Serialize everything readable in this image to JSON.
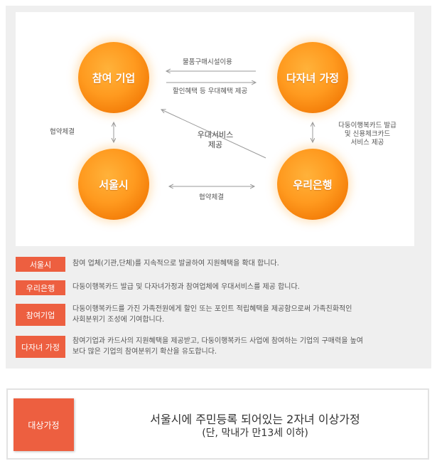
{
  "diagram": {
    "nodes": {
      "participating_company": "참여 기업",
      "multi_child_family": "다자녀 가정",
      "seoul": "서울시",
      "woori_bank": "우리은행"
    },
    "edge_labels": {
      "purchase": "물품구매시설이용",
      "discount": "할인혜택 등 우대혜택 제공",
      "agreement_left": "협약체결",
      "agreement_bottom": "협약체결",
      "bank_card_lines": [
        "다둥이행복카드 발급",
        "및 신용체크카드",
        "서비스 제공"
      ],
      "preferential_lines": [
        "우대서비스",
        "제공"
      ]
    },
    "colors": {
      "node": "#f7890c",
      "badge": "#ed5f40",
      "arrow": "#999999"
    }
  },
  "descriptions": [
    {
      "badge": "서울시",
      "lines": [
        "참여 업체(기관,단체)를 지속적으로 발굴하여 지원혜택을 확대 합니다."
      ]
    },
    {
      "badge": "우리은행",
      "lines": [
        "다둥이행복카드 발급 및 다자녀가정과 참여업체에 우대서비스를 제공 합니다."
      ]
    },
    {
      "badge": "참여기업",
      "lines": [
        "다둥이행복카드를 가진 가족전원에게 할인 또는 포인트 적립혜택을 제공함으로써 가족친화적인",
        "사회분위기 조성에 기여합니다."
      ]
    },
    {
      "badge": "다자녀 가정",
      "lines": [
        "참여기업과 카드사의 지원혜택을 제공받고, 다둥이행복카드 사업에 참여하는 기업의 구매력을 높여",
        "보다 많은 기업의 참여분위기 확산을 유도합니다."
      ]
    }
  ],
  "target": {
    "badge": "대상가정",
    "line1": "서울시에 주민등록 되어있는 2자녀 이상가정",
    "line2": "(단, 막내가 만13세 이하)"
  }
}
